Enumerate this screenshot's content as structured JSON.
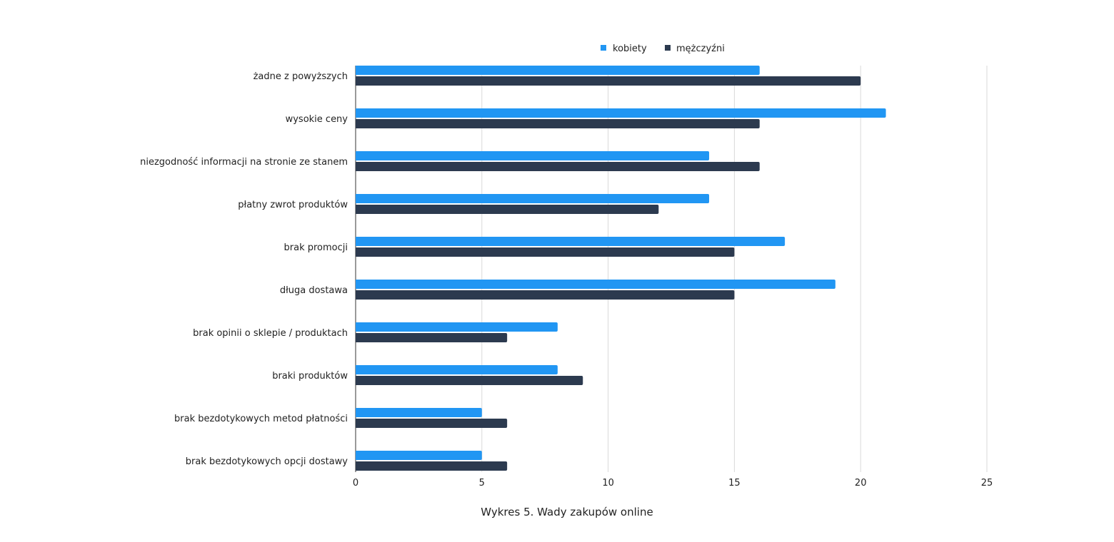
{
  "chart_data": {
    "type": "bar",
    "orientation": "horizontal",
    "title": "Wykres 5. Wady zakupów online",
    "xlabel": "",
    "ylabel": "",
    "xlim": [
      0,
      25
    ],
    "ticks": [
      0,
      5,
      10,
      15,
      20,
      25
    ],
    "tick_labels": [
      "0",
      "5",
      "10",
      "15",
      "20",
      "25"
    ],
    "grid": true,
    "legend_position": "top",
    "categories": [
      "żadne z powyższych",
      "wysokie ceny",
      "niezgodność informacji na stronie ze stanem",
      "płatny zwrot produktów",
      "brak promocji",
      "długa dostawa",
      "brak opinii o sklepie / produktach",
      "braki produktów",
      "brak bezdotykowych metod płatności",
      "brak bezdotykowych opcji dostawy"
    ],
    "series": [
      {
        "name": "kobiety",
        "color": "#2196f3",
        "values": [
          16,
          21,
          14,
          14,
          17,
          19,
          8,
          8,
          5,
          5
        ]
      },
      {
        "name": "mężczyźni",
        "color": "#2c3a4f",
        "values": [
          20,
          16,
          16,
          12,
          15,
          15,
          6,
          9,
          6,
          6
        ]
      }
    ]
  }
}
